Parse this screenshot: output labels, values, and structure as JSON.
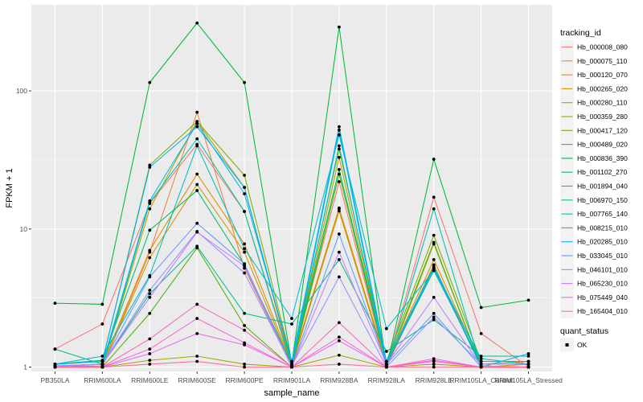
{
  "chart_data": {
    "type": "line",
    "title": "",
    "xlabel": "sample_name",
    "ylabel": "FPKM + 1",
    "y_scale": "log10",
    "ylim": [
      0.93,
      420
    ],
    "y_ticks": [
      1,
      10,
      100
    ],
    "y_tick_labels": [
      "1",
      "10",
      "100"
    ],
    "grid": true,
    "background": "#ebebeb",
    "categories": [
      "PB350LA",
      "RRIM600LA",
      "RRIM600LE",
      "RRIM600SE",
      "RRIM600PE",
      "RRIM901LA",
      "RRIM928BA",
      "RRIM928LA",
      "RRIM928LE",
      "RRIM105LA_Control",
      "RRIM105LA_Stressed"
    ],
    "legend": {
      "title": "tracking_id",
      "position": "right",
      "shape_title": "quant_status",
      "shape_entries": [
        "OK"
      ]
    },
    "series": [
      {
        "name": "Hb_000008_080",
        "color": "#F8766D",
        "values": [
          1.35,
          2.05,
          15.3,
          41.0,
          13.4,
          1.05,
          22.0,
          1.02,
          17.0,
          1.75,
          1.0
        ]
      },
      {
        "name": "Hb_000075_110",
        "color": "#ED813E",
        "values": [
          1.0,
          1.0,
          6.8,
          70.0,
          5.2,
          1.0,
          14.0,
          1.0,
          5.4,
          1.02,
          1.0
        ]
      },
      {
        "name": "Hb_000120_070",
        "color": "#DE8C00",
        "values": [
          1.02,
          1.05,
          7.0,
          25.0,
          7.8,
          1.05,
          14.2,
          1.05,
          6.0,
          1.05,
          1.1
        ]
      },
      {
        "name": "Hb_000265_020",
        "color": "#CD9600",
        "values": [
          1.0,
          1.02,
          6.2,
          21.0,
          6.8,
          1.02,
          13.5,
          1.02,
          5.5,
          1.0,
          1.05
        ]
      },
      {
        "name": "Hb_000280_110",
        "color": "#B79F00",
        "values": [
          1.0,
          1.0,
          14.0,
          60.0,
          20.0,
          1.0,
          33.0,
          1.0,
          7.8,
          1.0,
          1.0
        ]
      },
      {
        "name": "Hb_000359_280",
        "color": "#9DA700",
        "values": [
          1.0,
          1.0,
          1.12,
          1.2,
          1.05,
          1.0,
          1.22,
          1.0,
          1.05,
          1.0,
          1.0
        ]
      },
      {
        "name": "Hb_000417_120",
        "color": "#7CAE00",
        "values": [
          1.05,
          1.1,
          29.0,
          60.0,
          24.5,
          1.1,
          38.0,
          1.1,
          9.0,
          1.1,
          1.1
        ]
      },
      {
        "name": "Hb_000489_020",
        "color": "#49B500",
        "values": [
          1.02,
          1.0,
          2.45,
          7.3,
          2.0,
          1.0,
          25.0,
          1.05,
          8.0,
          1.0,
          1.0
        ]
      },
      {
        "name": "Hb_000836_390",
        "color": "#00BA38",
        "values": [
          2.9,
          2.85,
          115.0,
          310.0,
          115.0,
          1.05,
          290.0,
          1.0,
          32.0,
          2.7,
          3.05
        ]
      },
      {
        "name": "Hb_001102_270",
        "color": "#00BE67",
        "values": [
          1.05,
          1.12,
          9.8,
          19.0,
          5.5,
          1.05,
          27.0,
          1.05,
          5.0,
          1.05,
          1.05
        ]
      },
      {
        "name": "Hb_001894_040",
        "color": "#00C08B",
        "values": [
          1.35,
          1.05,
          3.4,
          7.5,
          2.45,
          2.05,
          6.0,
          1.3,
          2.2,
          1.2,
          1.2
        ]
      },
      {
        "name": "Hb_006970_150",
        "color": "#00C1AA",
        "values": [
          1.0,
          1.0,
          15.5,
          45.0,
          13.4,
          1.0,
          40.0,
          1.0,
          14.0,
          1.0,
          1.0
        ]
      },
      {
        "name": "Hb_007765_140",
        "color": "#00BFC4",
        "values": [
          1.05,
          1.2,
          4.6,
          40.0,
          7.2,
          2.25,
          48.0,
          1.9,
          5.0,
          1.15,
          1.05
        ]
      },
      {
        "name": "Hb_008215_010",
        "color": "#00B9E3",
        "values": [
          1.02,
          1.05,
          16.0,
          58.0,
          18.0,
          1.1,
          55.0,
          1.1,
          5.3,
          1.1,
          1.1
        ]
      },
      {
        "name": "Hb_020285_010",
        "color": "#00AEFA",
        "values": [
          1.05,
          1.1,
          28.0,
          55.0,
          20.0,
          1.05,
          52.0,
          1.05,
          5.2,
          1.0,
          1.25
        ]
      },
      {
        "name": "Hb_033045_010",
        "color": "#619CFF",
        "values": [
          1.0,
          1.05,
          4.5,
          11.0,
          5.6,
          1.0,
          9.2,
          1.05,
          2.45,
          1.0,
          1.0
        ]
      },
      {
        "name": "Hb_046101_010",
        "color": "#9590FF",
        "values": [
          1.02,
          1.05,
          3.6,
          9.6,
          4.8,
          1.02,
          4.5,
          1.0,
          2.3,
          1.05,
          1.05
        ]
      },
      {
        "name": "Hb_065230_010",
        "color": "#C77CFF",
        "values": [
          1.0,
          1.05,
          3.2,
          9.5,
          5.4,
          1.0,
          6.8,
          1.05,
          3.2,
          1.02,
          1.0
        ]
      },
      {
        "name": "Hb_075449_040",
        "color": "#E76BF3",
        "values": [
          1.0,
          1.0,
          1.25,
          1.75,
          1.45,
          1.0,
          1.55,
          1.0,
          1.1,
          1.0,
          1.0
        ]
      },
      {
        "name": "Hb_165404_010",
        "color": "#FA62DB",
        "values": [
          1.0,
          1.0,
          1.35,
          2.25,
          1.5,
          1.0,
          1.65,
          1.0,
          1.15,
          1.0,
          1.0
        ]
      },
      {
        "name": "",
        "color": "#FF62BC",
        "values": [
          1.0,
          1.0,
          1.6,
          2.85,
          1.85,
          1.0,
          2.1,
          1.0,
          1.12,
          1.0,
          1.0
        ]
      },
      {
        "name": "",
        "color": "#FF6C91",
        "values": [
          1.0,
          1.0,
          1.05,
          1.1,
          1.0,
          1.0,
          1.05,
          1.0,
          1.0,
          1.0,
          1.0
        ]
      }
    ]
  }
}
